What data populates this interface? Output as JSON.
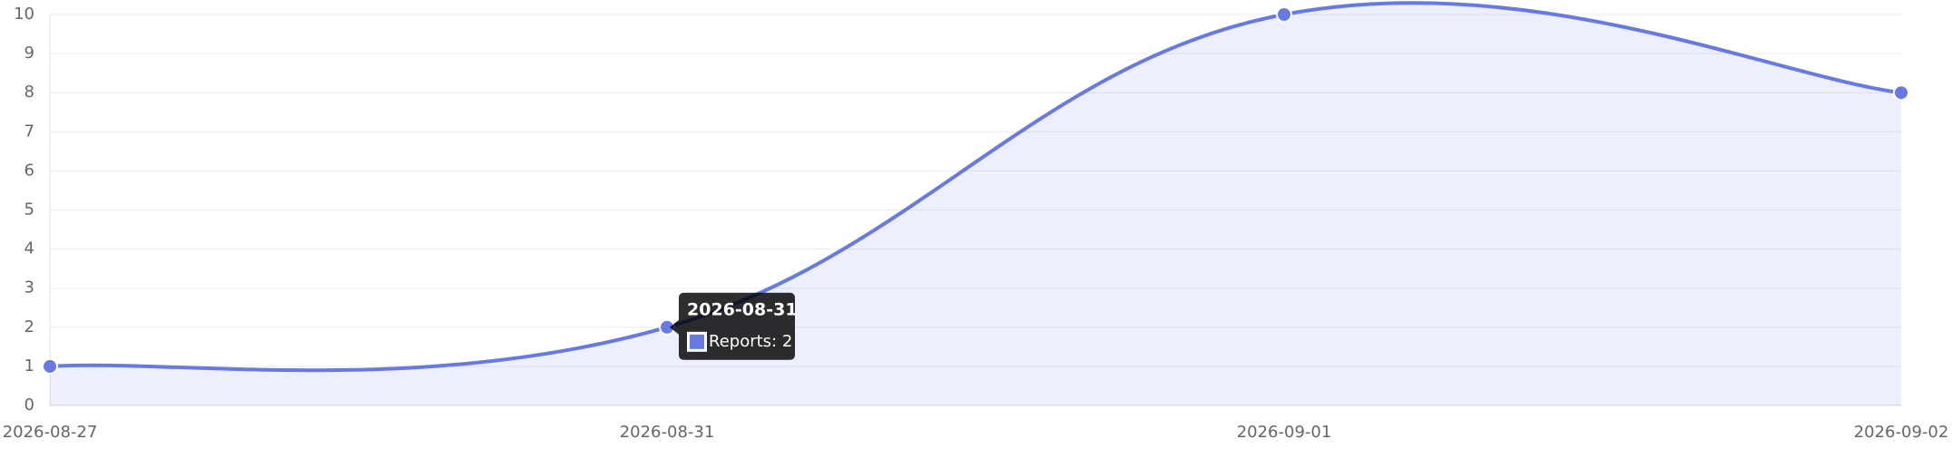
{
  "chart_data": {
    "type": "line",
    "categories": [
      "2026-08-27",
      "2026-08-31",
      "2026-09-01",
      "2026-09-02"
    ],
    "series": [
      {
        "name": "Reports",
        "color": "#6779e3",
        "values": [
          1,
          2,
          10,
          8
        ]
      }
    ],
    "ylim": [
      0,
      10
    ],
    "yticks": [
      0,
      1,
      2,
      3,
      4,
      5,
      6,
      7,
      8,
      9,
      10
    ],
    "grid": true,
    "fill": true,
    "tooltip": {
      "title": "2026-08-31",
      "label": "Reports: 2"
    }
  }
}
